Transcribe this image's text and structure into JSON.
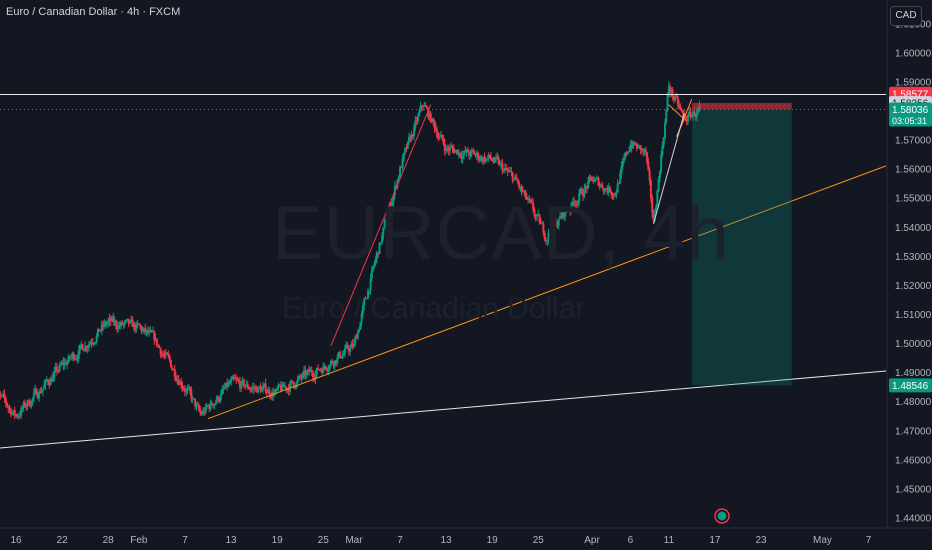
{
  "header": {
    "title": "Euro / Canadian Dollar · 4h · FXCM",
    "currency": "CAD"
  },
  "watermark": {
    "symbol": "EURCAD, 4h",
    "name": "Euro / Canadian Dollar"
  },
  "price_labels": [
    {
      "text": "1.58577",
      "color": "#f23645"
    },
    {
      "text": "1.58256",
      "color": "#d1d4dc"
    },
    {
      "text": "1.58036",
      "sub": "03:05:31",
      "color": "#089981"
    },
    {
      "text": "1.48546",
      "color": "#089981"
    }
  ],
  "icons": {
    "event": "event-icon"
  },
  "chart_data": {
    "type": "candlestick",
    "title": "Euro / Canadian Dollar · 4h · FXCM",
    "y_axis": {
      "ticks": [
        "1.44000",
        "1.45000",
        "1.46000",
        "1.47000",
        "1.48000",
        "1.49000",
        "1.50000",
        "1.51000",
        "1.52000",
        "1.53000",
        "1.54000",
        "1.55000",
        "1.56000",
        "1.57000",
        "1.58000",
        "1.59000",
        "1.60000",
        "1.61000"
      ],
      "range": [
        1.44,
        1.612
      ],
      "side": "right"
    },
    "x_axis": {
      "tick_labels": [
        "16",
        "22",
        "28",
        "Feb",
        "7",
        "13",
        "19",
        "25",
        "Mar",
        "7",
        "13",
        "19",
        "25",
        "Apr",
        "6",
        "11",
        "17",
        "23",
        "May",
        "7"
      ]
    },
    "approx_close_path": [
      {
        "date": "Jan 13",
        "close": 1.484
      },
      {
        "date": "Jan 16",
        "close": 1.475
      },
      {
        "date": "Jan 22",
        "close": 1.492
      },
      {
        "date": "Jan 28",
        "close": 1.507
      },
      {
        "date": "Feb 1",
        "close": 1.505
      },
      {
        "date": "Feb 3",
        "close": 1.501
      },
      {
        "date": "Feb 7",
        "close": 1.485
      },
      {
        "date": "Feb 9",
        "close": 1.475
      },
      {
        "date": "Feb 13",
        "close": 1.486
      },
      {
        "date": "Feb 19",
        "close": 1.483
      },
      {
        "date": "Feb 25",
        "close": 1.492
      },
      {
        "date": "Mar 1",
        "close": 1.499
      },
      {
        "date": "Mar 3",
        "close": 1.52
      },
      {
        "date": "Mar 7",
        "close": 1.56
      },
      {
        "date": "Mar 10",
        "close": 1.582
      },
      {
        "date": "Mar 13",
        "close": 1.567
      },
      {
        "date": "Mar 19",
        "close": 1.563
      },
      {
        "date": "Mar 22",
        "close": 1.556
      },
      {
        "date": "Mar 26",
        "close": 1.537
      },
      {
        "date": "Apr 1",
        "close": 1.556
      },
      {
        "date": "Apr 4",
        "close": 1.552
      },
      {
        "date": "Apr 6",
        "close": 1.569
      },
      {
        "date": "Apr 8",
        "close": 1.565
      },
      {
        "date": "Apr 9",
        "close": 1.541
      },
      {
        "date": "Apr 11",
        "close": 1.588
      },
      {
        "date": "Apr 13",
        "close": 1.577
      },
      {
        "date": "Apr 15",
        "close": 1.58
      }
    ],
    "drawings": {
      "horizontal_resistance": 1.5855,
      "ascending_support": {
        "from": [
          "Jan 10",
          1.463
        ],
        "to": [
          "Apr 18",
          1.4855
        ]
      },
      "orange_trendline": {
        "from": [
          "Feb 10",
          1.474
        ],
        "to": [
          "Apr 18",
          1.54
        ]
      },
      "red_trendline": {
        "from": [
          "Feb 26",
          1.499
        ],
        "to": [
          "Mar 11",
          1.582
        ]
      },
      "short_position": {
        "entry": 1.5804,
        "stop": 1.5826,
        "target": 1.4855,
        "start": "Apr 14",
        "end": "Apr 27"
      }
    },
    "last_price": 1.58036,
    "countdown": "03:05:31",
    "grid": false,
    "colors": {
      "up": "#089981",
      "down": "#f23645",
      "background": "#131722",
      "stop_zone": "#f23645",
      "target_zone": "#089981"
    }
  }
}
